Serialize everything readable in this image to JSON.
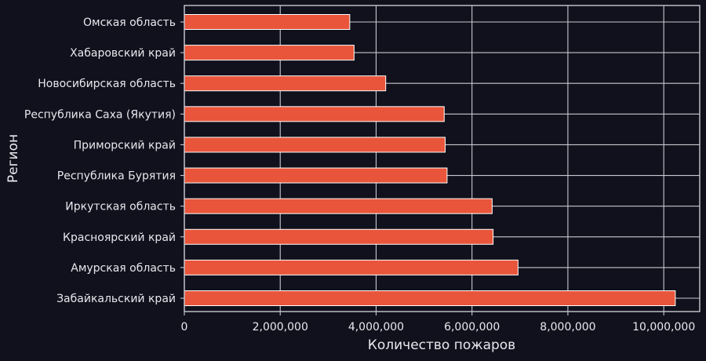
{
  "chart_data": {
    "type": "bar",
    "orientation": "horizontal",
    "categories": [
      "Омская область",
      "Хабаровский край",
      "Новосибирская область",
      "Республика Саха (Якутия)",
      "Приморский край",
      "Республика Бурятия",
      "Иркутская область",
      "Красноярский край",
      "Амурская область",
      "Забайкальский край"
    ],
    "values": [
      3450000,
      3540000,
      4200000,
      5420000,
      5440000,
      5480000,
      6420000,
      6440000,
      6960000,
      10240000
    ],
    "xlabel": "Количество пожаров",
    "ylabel": "Регион",
    "xlim": [
      0,
      10750000
    ],
    "xticks": [
      0,
      2000000,
      4000000,
      6000000,
      8000000,
      10000000
    ],
    "xtick_labels": [
      "0",
      "2,000,000",
      "4,000,000",
      "6,000,000",
      "8,000,000",
      "10,000,000"
    ],
    "grid": true,
    "colors": {
      "bar": "#e8553a",
      "background": "#10111c",
      "grid": "#c8c8cf",
      "text": "#e8e8ee"
    }
  }
}
